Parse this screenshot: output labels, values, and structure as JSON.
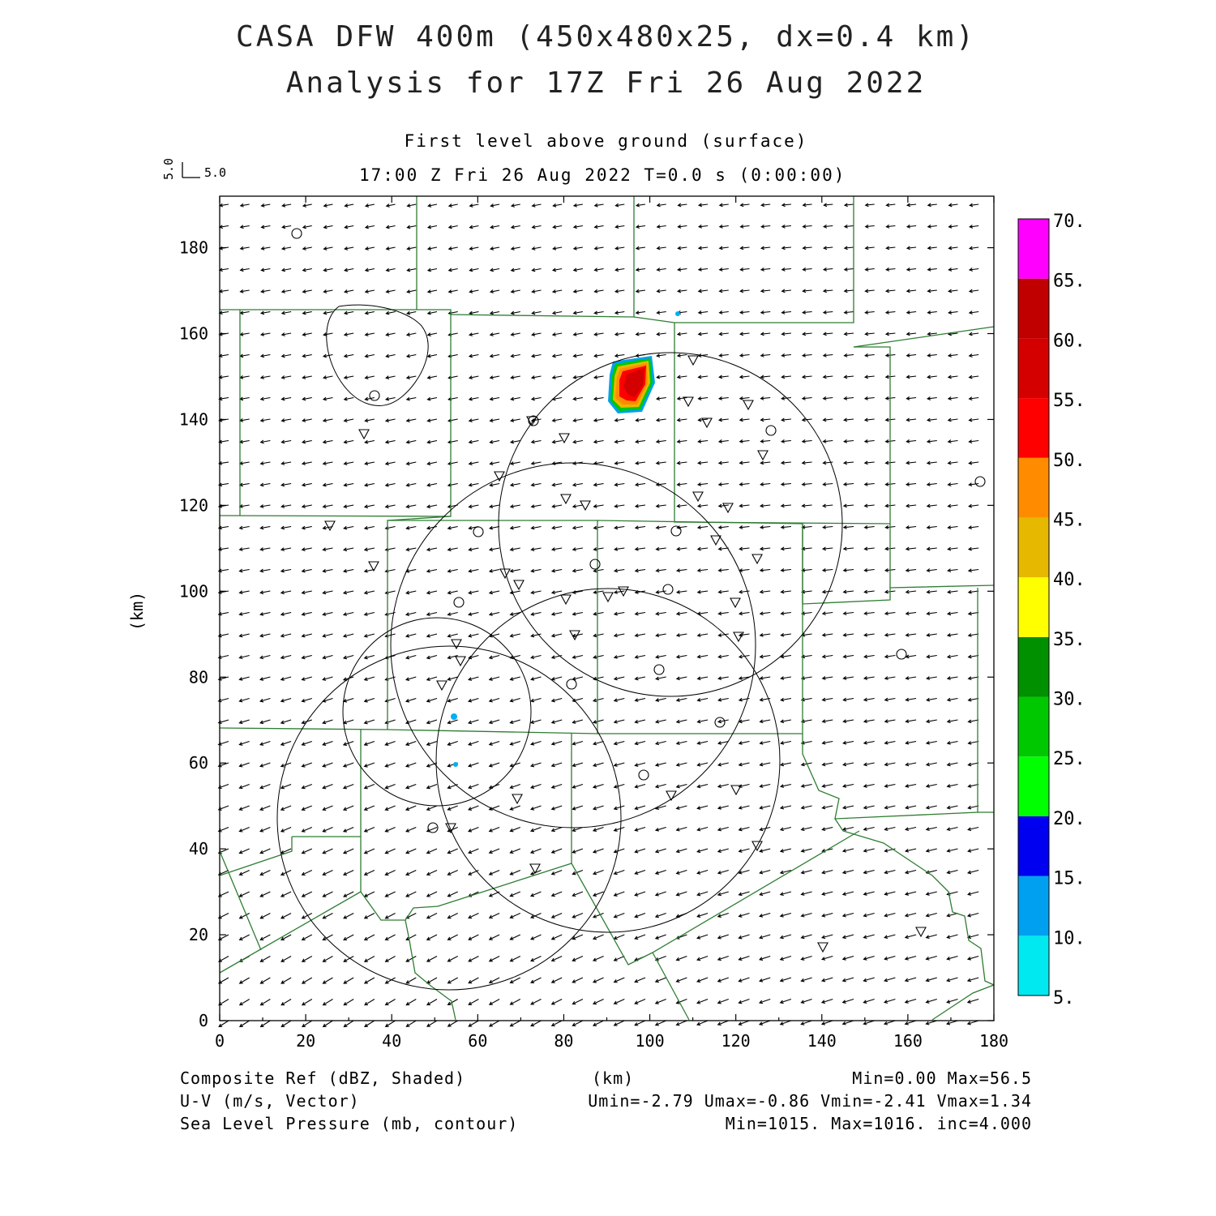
{
  "header": {
    "title_line1": "CASA DFW 400m (450x480x25, dx=0.4 km)",
    "title_line2": "Analysis for 17Z Fri 26 Aug 2022",
    "level": "First level above ground (surface)",
    "time": "17:00 Z Fri 26 Aug 2022    T=0.0 s (0:00:00)"
  },
  "reference_vector": {
    "u_label": "5.0",
    "v_label": "5.0"
  },
  "axes": {
    "x_unit": "(km)",
    "y_unit": "(km)",
    "x_ticks": [
      "0",
      "20",
      "40",
      "60",
      "80",
      "100",
      "120",
      "140",
      "160",
      "180"
    ],
    "y_ticks": [
      "0",
      "20",
      "40",
      "60",
      "80",
      "100",
      "120",
      "140",
      "160",
      "180"
    ],
    "x_range": [
      0,
      180
    ],
    "y_range": [
      0,
      192
    ]
  },
  "colorbar": {
    "labels": [
      "5.",
      "10.",
      "15.",
      "20.",
      "25.",
      "30.",
      "35.",
      "40.",
      "45.",
      "50.",
      "55.",
      "60.",
      "65.",
      "70."
    ],
    "colors": [
      "#00e8f0",
      "#00a0f0",
      "#0000f0",
      "#00ff00",
      "#00c800",
      "#009000",
      "#ffff00",
      "#e6b800",
      "#ff8c00",
      "#ff0000",
      "#d40000",
      "#c00000",
      "#ff00ff"
    ]
  },
  "footer": {
    "field1": "Composite Ref (dBZ, Shaded)",
    "field1_stats": "Min=0.00 Max=56.5",
    "field2": "U-V (m/s, Vector)",
    "field2_stats": "Umin=-2.79 Umax=-0.86 Vmin=-2.41 Vmax=1.34",
    "field3": "Sea Level Pressure (mb, contour)",
    "field3_stats": "Min=1015. Max=1016. inc=4.000",
    "x_unit": "(km)"
  },
  "colors": {
    "county_lines": "#2e7d32",
    "frame": "#000000"
  }
}
